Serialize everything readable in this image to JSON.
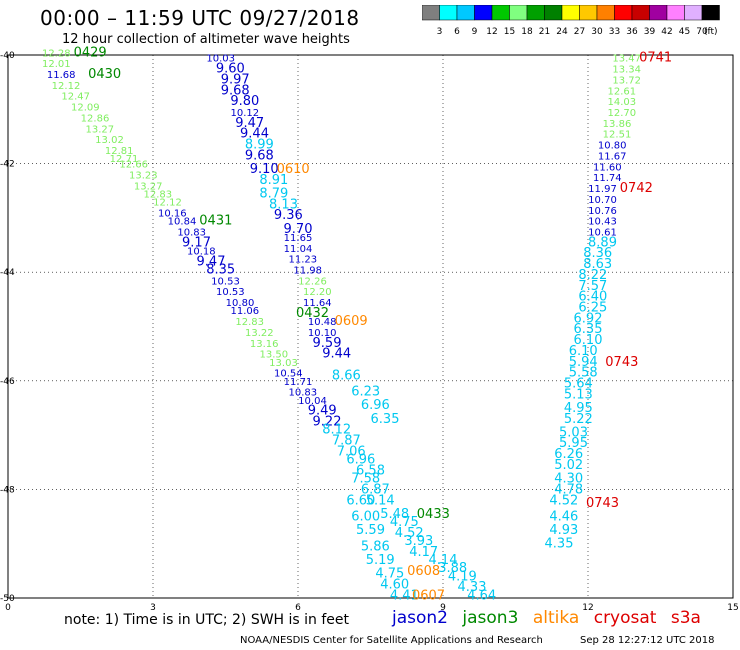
{
  "title": "00:00 – 11:59 UTC 09/27/2018",
  "subtitle": "12 hour collection of altimeter wave heights",
  "colorbar": {
    "labels": [
      "3",
      "6",
      "9",
      "12",
      "15",
      "18",
      "21",
      "24",
      "27",
      "30",
      "33",
      "36",
      "39",
      "42",
      "45",
      "70"
    ],
    "unit": "(ft)",
    "colors": [
      "#7f7f7f",
      "#00ffff",
      "#00c8ff",
      "#0000ff",
      "#00c800",
      "#80ff80",
      "#00a000",
      "#008000",
      "#ffff00",
      "#ffc800",
      "#ff8000",
      "#ff0000",
      "#c80000",
      "#a000a0",
      "#ff80ff",
      "#e0b0ff",
      "#000000"
    ]
  },
  "note": "note: 1) Time is in UTC; 2) SWH is in feet",
  "legend": [
    {
      "label": "jason2",
      "color": "#0000cc"
    },
    {
      "label": "jason3",
      "color": "#008800"
    },
    {
      "label": "altika",
      "color": "#ff8800"
    },
    {
      "label": "cryosat",
      "color": "#dd0000"
    },
    {
      "label": "s3a",
      "color": "#dd0000"
    }
  ],
  "credit": "NOAA/NESDIS Center for Satellite Applications and Research",
  "stamp": "Sep 28 12:27:12 UTC 2018",
  "chart_data": {
    "type": "scatter",
    "xlim": [
      0,
      15
    ],
    "ylim": [
      -50,
      -40
    ],
    "xticks": [
      "0",
      "3",
      "6",
      "9",
      "12",
      "15"
    ],
    "yticks": [
      "-40",
      "-42",
      "-44",
      "-46",
      "-48",
      "-50"
    ],
    "grid": true,
    "colors": {
      "green": "#80ee60",
      "darkgreen": "#008800",
      "blue": "#0000cc",
      "cyan": "#00c8f0",
      "orange": "#ff8800",
      "red": "#dd0000"
    },
    "labels": [
      {
        "t": "12.28",
        "x": 1.0,
        "y": -39.95,
        "c": "green"
      },
      {
        "t": "0429",
        "x": 1.7,
        "y": -39.95,
        "c": "darkgreen"
      },
      {
        "t": "12.01",
        "x": 1.0,
        "y": -40.15,
        "c": "green"
      },
      {
        "t": "11.68",
        "x": 1.1,
        "y": -40.35,
        "c": "blue"
      },
      {
        "t": "0430",
        "x": 2.0,
        "y": -40.35,
        "c": "darkgreen"
      },
      {
        "t": "12.12",
        "x": 1.2,
        "y": -40.55,
        "c": "green"
      },
      {
        "t": "12.47",
        "x": 1.4,
        "y": -40.75,
        "c": "green"
      },
      {
        "t": "12.09",
        "x": 1.6,
        "y": -40.95,
        "c": "green"
      },
      {
        "t": "12.86",
        "x": 1.8,
        "y": -41.15,
        "c": "green"
      },
      {
        "t": "13.27",
        "x": 1.9,
        "y": -41.35,
        "c": "green"
      },
      {
        "t": "13.02",
        "x": 2.1,
        "y": -41.55,
        "c": "green"
      },
      {
        "t": "12.81",
        "x": 2.3,
        "y": -41.75,
        "c": "green"
      },
      {
        "t": "12.71",
        "x": 2.4,
        "y": -41.9,
        "c": "green"
      },
      {
        "t": "12.66",
        "x": 2.6,
        "y": -42.0,
        "c": "green"
      },
      {
        "t": "13.23",
        "x": 2.8,
        "y": -42.2,
        "c": "green"
      },
      {
        "t": "13.27",
        "x": 2.9,
        "y": -42.4,
        "c": "green"
      },
      {
        "t": "12.83",
        "x": 3.1,
        "y": -42.55,
        "c": "green"
      },
      {
        "t": "12.12",
        "x": 3.3,
        "y": -42.7,
        "c": "green"
      },
      {
        "t": "10.16",
        "x": 3.4,
        "y": -42.9,
        "c": "blue"
      },
      {
        "t": "10.84",
        "x": 3.6,
        "y": -43.05,
        "c": "blue"
      },
      {
        "t": "0431",
        "x": 4.3,
        "y": -43.05,
        "c": "darkgreen"
      },
      {
        "t": "10.83",
        "x": 3.8,
        "y": -43.25,
        "c": "blue"
      },
      {
        "t": "9.17",
        "x": 3.9,
        "y": -43.45,
        "c": "blue"
      },
      {
        "t": "10.18",
        "x": 4.0,
        "y": -43.6,
        "c": "blue"
      },
      {
        "t": "9.47",
        "x": 4.2,
        "y": -43.8,
        "c": "blue"
      },
      {
        "t": "8.35",
        "x": 4.4,
        "y": -43.95,
        "c": "blue"
      },
      {
        "t": "10.53",
        "x": 4.5,
        "y": -44.15,
        "c": "blue"
      },
      {
        "t": "10.53",
        "x": 4.6,
        "y": -44.35,
        "c": "blue"
      },
      {
        "t": "10.80",
        "x": 4.8,
        "y": -44.55,
        "c": "blue"
      },
      {
        "t": "11.06",
        "x": 4.9,
        "y": -44.7,
        "c": "blue"
      },
      {
        "t": "12.83",
        "x": 5.0,
        "y": -44.9,
        "c": "green"
      },
      {
        "t": "13.22",
        "x": 5.2,
        "y": -45.1,
        "c": "green"
      },
      {
        "t": "13.16",
        "x": 5.3,
        "y": -45.3,
        "c": "green"
      },
      {
        "t": "13.50",
        "x": 5.5,
        "y": -45.5,
        "c": "green"
      },
      {
        "t": "13.03",
        "x": 5.7,
        "y": -45.65,
        "c": "green"
      },
      {
        "t": "10.54",
        "x": 5.8,
        "y": -45.85,
        "c": "blue"
      },
      {
        "t": "11.71",
        "x": 6.0,
        "y": -46.0,
        "c": "blue"
      },
      {
        "t": "10.83",
        "x": 6.1,
        "y": -46.2,
        "c": "blue"
      },
      {
        "t": "10.04",
        "x": 6.3,
        "y": -46.35,
        "c": "blue"
      },
      {
        "t": "9.49",
        "x": 6.5,
        "y": -46.55,
        "c": "blue"
      },
      {
        "t": "9.22",
        "x": 6.6,
        "y": -46.75,
        "c": "blue"
      },
      {
        "t": "8.12",
        "x": 6.8,
        "y": -46.9,
        "c": "cyan"
      },
      {
        "t": "7.87",
        "x": 7.0,
        "y": -47.1,
        "c": "cyan"
      },
      {
        "t": "7.06",
        "x": 7.1,
        "y": -47.3,
        "c": "cyan"
      },
      {
        "t": "6.96",
        "x": 7.3,
        "y": -47.45,
        "c": "cyan"
      },
      {
        "t": "6.58",
        "x": 7.5,
        "y": -47.65,
        "c": "cyan"
      },
      {
        "t": "7.58",
        "x": 7.4,
        "y": -47.8,
        "c": "cyan"
      },
      {
        "t": "6.87",
        "x": 7.6,
        "y": -48.0,
        "c": "cyan"
      },
      {
        "t": "6.60",
        "x": 7.3,
        "y": -48.2,
        "c": "cyan"
      },
      {
        "t": "6.00",
        "x": 7.4,
        "y": -48.5,
        "c": "cyan"
      },
      {
        "t": "5.59",
        "x": 7.5,
        "y": -48.75,
        "c": "cyan"
      },
      {
        "t": "5.86",
        "x": 7.6,
        "y": -49.05,
        "c": "cyan"
      },
      {
        "t": "5.19",
        "x": 7.7,
        "y": -49.3,
        "c": "cyan"
      },
      {
        "t": "4.75",
        "x": 7.9,
        "y": -49.55,
        "c": "cyan"
      },
      {
        "t": "4.60",
        "x": 8.0,
        "y": -49.75,
        "c": "cyan"
      },
      {
        "t": "4.41",
        "x": 8.2,
        "y": -49.95,
        "c": "cyan"
      },
      {
        "t": "10.03",
        "x": 4.4,
        "y": -40.05,
        "c": "blue"
      },
      {
        "t": "9.60",
        "x": 4.6,
        "y": -40.25,
        "c": "blue"
      },
      {
        "t": "9.97",
        "x": 4.7,
        "y": -40.45,
        "c": "blue"
      },
      {
        "t": "9.68",
        "x": 4.7,
        "y": -40.65,
        "c": "blue"
      },
      {
        "t": "9.80",
        "x": 4.9,
        "y": -40.85,
        "c": "blue"
      },
      {
        "t": "10.12",
        "x": 4.9,
        "y": -41.05,
        "c": "blue"
      },
      {
        "t": "9.47",
        "x": 5.0,
        "y": -41.25,
        "c": "blue"
      },
      {
        "t": "9.44",
        "x": 5.1,
        "y": -41.45,
        "c": "blue"
      },
      {
        "t": "8.99",
        "x": 5.2,
        "y": -41.65,
        "c": "cyan"
      },
      {
        "t": "9.68",
        "x": 5.2,
        "y": -41.85,
        "c": "blue"
      },
      {
        "t": "9.10",
        "x": 5.3,
        "y": -42.1,
        "c": "blue"
      },
      {
        "t": "0610",
        "x": 5.9,
        "y": -42.1,
        "c": "orange"
      },
      {
        "t": "8.91",
        "x": 5.5,
        "y": -42.3,
        "c": "cyan"
      },
      {
        "t": "8.79",
        "x": 5.5,
        "y": -42.55,
        "c": "cyan"
      },
      {
        "t": "8.13",
        "x": 5.7,
        "y": -42.75,
        "c": "cyan"
      },
      {
        "t": "9.36",
        "x": 5.8,
        "y": -42.95,
        "c": "blue"
      },
      {
        "t": "9.70",
        "x": 6.0,
        "y": -43.2,
        "c": "blue"
      },
      {
        "t": "11.65",
        "x": 6.0,
        "y": -43.35,
        "c": "blue"
      },
      {
        "t": "11.04",
        "x": 6.0,
        "y": -43.55,
        "c": "blue"
      },
      {
        "t": "11.23",
        "x": 6.1,
        "y": -43.75,
        "c": "blue"
      },
      {
        "t": "11.98",
        "x": 6.2,
        "y": -43.95,
        "c": "blue"
      },
      {
        "t": "12.26",
        "x": 6.3,
        "y": -44.15,
        "c": "green"
      },
      {
        "t": "12.20",
        "x": 6.4,
        "y": -44.35,
        "c": "green"
      },
      {
        "t": "11.64",
        "x": 6.4,
        "y": -44.55,
        "c": "blue"
      },
      {
        "t": "0432",
        "x": 6.3,
        "y": -44.75,
        "c": "darkgreen"
      },
      {
        "t": "10.48",
        "x": 6.5,
        "y": -44.9,
        "c": "blue"
      },
      {
        "t": "0609",
        "x": 7.1,
        "y": -44.9,
        "c": "orange"
      },
      {
        "t": "10.10",
        "x": 6.5,
        "y": -45.1,
        "c": "blue"
      },
      {
        "t": "9.59",
        "x": 6.6,
        "y": -45.3,
        "c": "blue"
      },
      {
        "t": "9.44",
        "x": 6.8,
        "y": -45.5,
        "c": "blue"
      },
      {
        "t": "8.66",
        "x": 7.0,
        "y": -45.9,
        "c": "cyan"
      },
      {
        "t": "6.23",
        "x": 7.4,
        "y": -46.2,
        "c": "cyan"
      },
      {
        "t": "6.96",
        "x": 7.6,
        "y": -46.45,
        "c": "cyan"
      },
      {
        "t": "6.35",
        "x": 7.8,
        "y": -46.7,
        "c": "cyan"
      },
      {
        "t": "5.14",
        "x": 7.7,
        "y": -48.2,
        "c": "cyan"
      },
      {
        "t": "5.48",
        "x": 8.0,
        "y": -48.45,
        "c": "cyan"
      },
      {
        "t": "0433",
        "x": 8.8,
        "y": -48.45,
        "c": "darkgreen"
      },
      {
        "t": "4.75",
        "x": 8.2,
        "y": -48.6,
        "c": "cyan"
      },
      {
        "t": "4.52",
        "x": 8.3,
        "y": -48.8,
        "c": "cyan"
      },
      {
        "t": "3.93",
        "x": 8.5,
        "y": -48.95,
        "c": "cyan"
      },
      {
        "t": "4.17",
        "x": 8.6,
        "y": -49.15,
        "c": "cyan"
      },
      {
        "t": "4.14",
        "x": 9.0,
        "y": -49.3,
        "c": "cyan"
      },
      {
        "t": "3.88",
        "x": 9.2,
        "y": -49.45,
        "c": "cyan"
      },
      {
        "t": "0608",
        "x": 8.6,
        "y": -49.5,
        "c": "orange"
      },
      {
        "t": "4.19",
        "x": 9.4,
        "y": -49.6,
        "c": "cyan"
      },
      {
        "t": "4.33",
        "x": 9.6,
        "y": -49.8,
        "c": "cyan"
      },
      {
        "t": "0607",
        "x": 8.7,
        "y": -49.95,
        "c": "orange"
      },
      {
        "t": "4.64",
        "x": 9.8,
        "y": -49.95,
        "c": "cyan"
      },
      {
        "t": "13.47",
        "x": 12.8,
        "y": -40.05,
        "c": "green"
      },
      {
        "t": "0741",
        "x": 13.4,
        "y": -40.05,
        "c": "red"
      },
      {
        "t": "13.34",
        "x": 12.8,
        "y": -40.25,
        "c": "green"
      },
      {
        "t": "13.72",
        "x": 12.8,
        "y": -40.45,
        "c": "green"
      },
      {
        "t": "12.61",
        "x": 12.7,
        "y": -40.65,
        "c": "green"
      },
      {
        "t": "14.03",
        "x": 12.7,
        "y": -40.85,
        "c": "green"
      },
      {
        "t": "12.70",
        "x": 12.7,
        "y": -41.05,
        "c": "green"
      },
      {
        "t": "13.86",
        "x": 12.6,
        "y": -41.25,
        "c": "green"
      },
      {
        "t": "12.51",
        "x": 12.6,
        "y": -41.45,
        "c": "green"
      },
      {
        "t": "10.80",
        "x": 12.5,
        "y": -41.65,
        "c": "blue"
      },
      {
        "t": "11.67",
        "x": 12.5,
        "y": -41.85,
        "c": "blue"
      },
      {
        "t": "11.60",
        "x": 12.4,
        "y": -42.05,
        "c": "blue"
      },
      {
        "t": "11.74",
        "x": 12.4,
        "y": -42.25,
        "c": "blue"
      },
      {
        "t": "0742",
        "x": 13.0,
        "y": -42.45,
        "c": "red"
      },
      {
        "t": "11.97",
        "x": 12.3,
        "y": -42.45,
        "c": "blue"
      },
      {
        "t": "10.70",
        "x": 12.3,
        "y": -42.65,
        "c": "blue"
      },
      {
        "t": "10.76",
        "x": 12.3,
        "y": -42.85,
        "c": "blue"
      },
      {
        "t": "10.43",
        "x": 12.3,
        "y": -43.05,
        "c": "blue"
      },
      {
        "t": "10.61",
        "x": 12.3,
        "y": -43.25,
        "c": "blue"
      },
      {
        "t": "8.89",
        "x": 12.3,
        "y": -43.45,
        "c": "cyan"
      },
      {
        "t": "8.36",
        "x": 12.2,
        "y": -43.65,
        "c": "cyan"
      },
      {
        "t": "8.63",
        "x": 12.2,
        "y": -43.85,
        "c": "cyan"
      },
      {
        "t": "8.22",
        "x": 12.1,
        "y": -44.05,
        "c": "cyan"
      },
      {
        "t": "7.57",
        "x": 12.1,
        "y": -44.25,
        "c": "cyan"
      },
      {
        "t": "6.40",
        "x": 12.1,
        "y": -44.45,
        "c": "cyan"
      },
      {
        "t": "6.25",
        "x": 12.1,
        "y": -44.65,
        "c": "cyan"
      },
      {
        "t": "6.92",
        "x": 12.0,
        "y": -44.85,
        "c": "cyan"
      },
      {
        "t": "6.35",
        "x": 12.0,
        "y": -45.05,
        "c": "cyan"
      },
      {
        "t": "6.10",
        "x": 12.0,
        "y": -45.25,
        "c": "cyan"
      },
      {
        "t": "6.10",
        "x": 11.9,
        "y": -45.45,
        "c": "cyan"
      },
      {
        "t": "5.94",
        "x": 11.9,
        "y": -45.65,
        "c": "cyan"
      },
      {
        "t": "0743",
        "x": 12.7,
        "y": -45.65,
        "c": "red"
      },
      {
        "t": "5.58",
        "x": 11.9,
        "y": -45.85,
        "c": "cyan"
      },
      {
        "t": "5.64",
        "x": 11.8,
        "y": -46.05,
        "c": "cyan"
      },
      {
        "t": "5.13",
        "x": 11.8,
        "y": -46.25,
        "c": "cyan"
      },
      {
        "t": "4.95",
        "x": 11.8,
        "y": -46.5,
        "c": "cyan"
      },
      {
        "t": "5.22",
        "x": 11.8,
        "y": -46.7,
        "c": "cyan"
      },
      {
        "t": "5.03",
        "x": 11.7,
        "y": -46.95,
        "c": "cyan"
      },
      {
        "t": "5.95",
        "x": 11.7,
        "y": -47.15,
        "c": "cyan"
      },
      {
        "t": "6.26",
        "x": 11.6,
        "y": -47.35,
        "c": "cyan"
      },
      {
        "t": "5.02",
        "x": 11.6,
        "y": -47.55,
        "c": "cyan"
      },
      {
        "t": "4.30",
        "x": 11.6,
        "y": -47.8,
        "c": "cyan"
      },
      {
        "t": "4.78",
        "x": 11.6,
        "y": -48.0,
        "c": "cyan"
      },
      {
        "t": "4.52",
        "x": 11.5,
        "y": -48.2,
        "c": "cyan"
      },
      {
        "t": "0743",
        "x": 12.3,
        "y": -48.25,
        "c": "red"
      },
      {
        "t": "4.46",
        "x": 11.5,
        "y": -48.5,
        "c": "cyan"
      },
      {
        "t": "4.93",
        "x": 11.5,
        "y": -48.75,
        "c": "cyan"
      },
      {
        "t": "4.35",
        "x": 11.4,
        "y": -49.0,
        "c": "cyan"
      }
    ]
  }
}
